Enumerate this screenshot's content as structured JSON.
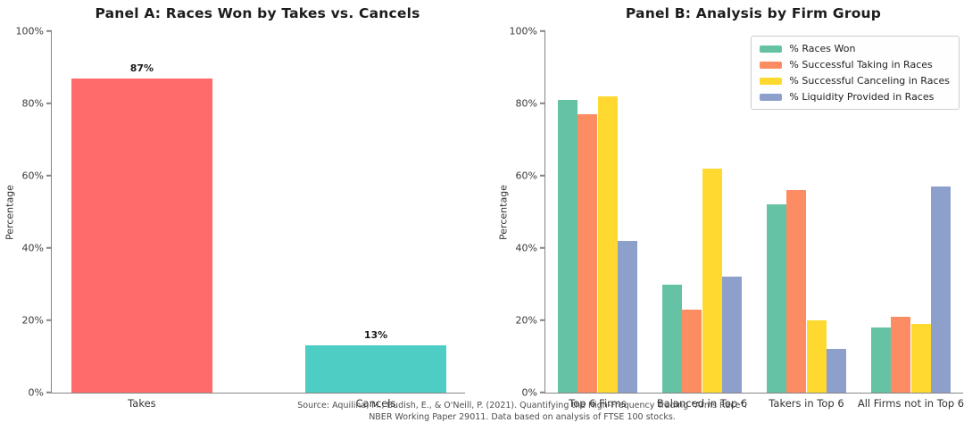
{
  "figure": {
    "background": "#ffffff",
    "axis_color": "#858585"
  },
  "source_note": {
    "line1": "Source: Aquilina, M., Budish, E., & O'Neill, P. (2021). Quantifying the High-Frequency Trading \"Arms Race\".",
    "line2": "NBER Working Paper 29011. Data based on analysis of FTSE 100 stocks."
  },
  "chart_data": [
    {
      "type": "bar",
      "title": "Panel A: Races Won by Takes vs. Cancels",
      "categories": [
        "Takes",
        "Cancels"
      ],
      "values": [
        87,
        13
      ],
      "bar_labels": [
        "87%",
        "13%"
      ],
      "colors": [
        "#ff6b6b",
        "#4ecdc4"
      ],
      "xlabel": "",
      "ylabel": "Percentage",
      "ylim": [
        0,
        100
      ],
      "yticks": [
        0,
        20,
        40,
        60,
        80,
        100
      ],
      "ytick_labels": [
        "0%",
        "20%",
        "40%",
        "60%",
        "80%",
        "100%"
      ],
      "grid": false,
      "legend": false
    },
    {
      "type": "bar",
      "title": "Panel B: Analysis by Firm Group",
      "categories": [
        "Top 6 Firms",
        "Balanced in Top 6",
        "Takers in Top 6",
        "All Firms not in Top 6"
      ],
      "series": [
        {
          "name": "% Races Won",
          "color": "#66c2a5",
          "values": [
            81,
            30,
            52,
            18
          ]
        },
        {
          "name": "% Successful Taking in Races",
          "color": "#fc8d62",
          "values": [
            77,
            23,
            56,
            21
          ]
        },
        {
          "name": "% Successful Canceling in Races",
          "color": "#ffd92f",
          "values": [
            82,
            62,
            20,
            19
          ]
        },
        {
          "name": "% Liquidity Provided in Races",
          "color": "#8da0cb",
          "values": [
            42,
            32,
            12,
            57
          ]
        }
      ],
      "xlabel": "",
      "ylabel": "Percentage",
      "ylim": [
        0,
        100
      ],
      "yticks": [
        0,
        20,
        40,
        60,
        80,
        100
      ],
      "ytick_labels": [
        "0%",
        "20%",
        "40%",
        "60%",
        "80%",
        "100%"
      ],
      "grid": false,
      "legend": true,
      "legend_position": "upper right"
    }
  ]
}
